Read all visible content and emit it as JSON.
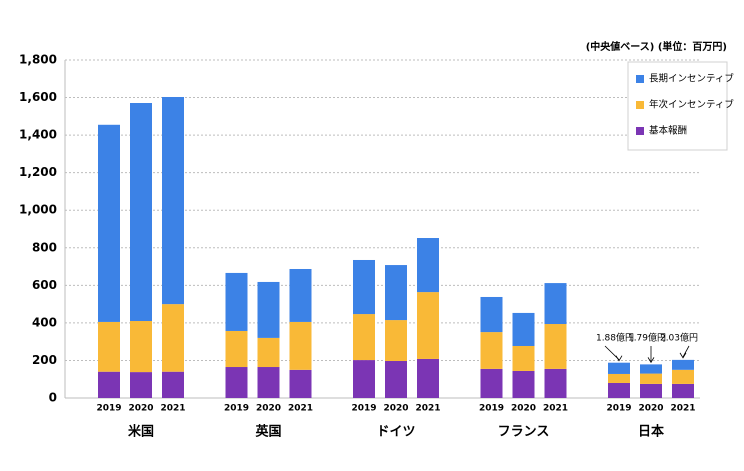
{
  "chart_data": {
    "type": "stacked-bar",
    "subtitle": "(中央値ベース) (単位：百万円)",
    "groups": [
      "米国",
      "英国",
      "ドイツ",
      "フランス",
      "日本"
    ],
    "categories": [
      "2019",
      "2020",
      "2021",
      "2019",
      "2020",
      "2021",
      "2019",
      "2020",
      "2021",
      "2019",
      "2020",
      "2021",
      "2019",
      "2020",
      "2021"
    ],
    "series": [
      {
        "name": "基本報酬",
        "color": "#7b35b4",
        "values": [
          140,
          138,
          140,
          165,
          165,
          150,
          202,
          197,
          208,
          155,
          144,
          155,
          80,
          75,
          75
        ]
      },
      {
        "name": "年次インセンティブ",
        "color": "#f9b937",
        "values": [
          265,
          272,
          360,
          192,
          155,
          255,
          245,
          218,
          356,
          196,
          133,
          239,
          48,
          55,
          75
        ]
      },
      {
        "name": "長期インセンティブ",
        "color": "#3c82e6",
        "values": [
          1050,
          1161,
          1103,
          309,
          298,
          282,
          288,
          293,
          288,
          187,
          176,
          218,
          60,
          49,
          53
        ]
      }
    ],
    "annotations": [
      "1.88億円",
      "1.79億円",
      "2.03億円"
    ],
    "ylim": [
      0,
      1800
    ],
    "yticks": [
      0,
      200,
      400,
      600,
      800,
      {
        "value": 1000,
        "label": "1,000"
      },
      {
        "value": 1200,
        "label": "1,200"
      },
      {
        "value": 1400,
        "label": "1,400"
      },
      {
        "value": 1600,
        "label": "1,600"
      },
      {
        "value": 1800,
        "label": "1,800"
      }
    ],
    "grid": true,
    "legend": "top-right"
  }
}
